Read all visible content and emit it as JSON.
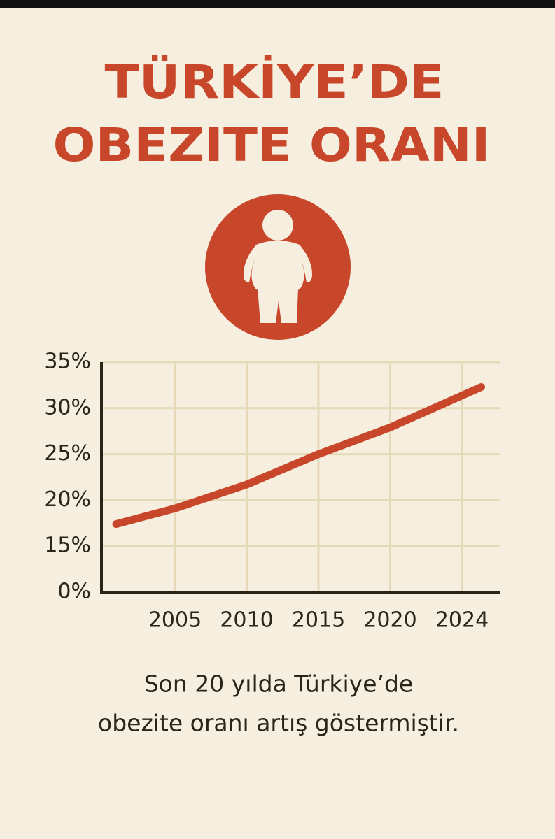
{
  "chart_data": {
    "type": "line",
    "title": [
      "TÜRKİYE’DE",
      "OBEZITE ORANI"
    ],
    "x": [
      2001,
      2005,
      2010,
      2015,
      2020,
      2025
    ],
    "values": [
      17.4,
      19.1,
      21.7,
      25.0,
      27.9,
      32.3
    ],
    "color": "#c8472b",
    "xlim": [
      2000,
      2026
    ],
    "xticks": [
      2005,
      2010,
      2015,
      2020,
      2024
    ],
    "ylim": [
      0,
      35
    ],
    "yticks": [
      {
        "value": 0,
        "label": "0%"
      },
      {
        "value": 15,
        "label": "15%"
      },
      {
        "value": 20,
        "label": "20%"
      },
      {
        "value": 25,
        "label": "25%"
      },
      {
        "value": 30,
        "label": "30%"
      },
      {
        "value": 35,
        "label": "35%"
      }
    ],
    "grid": true,
    "annotation": [
      "Son 20 yılda Türkiye’de",
      "obezite oranı artış göstermiştir."
    ]
  }
}
